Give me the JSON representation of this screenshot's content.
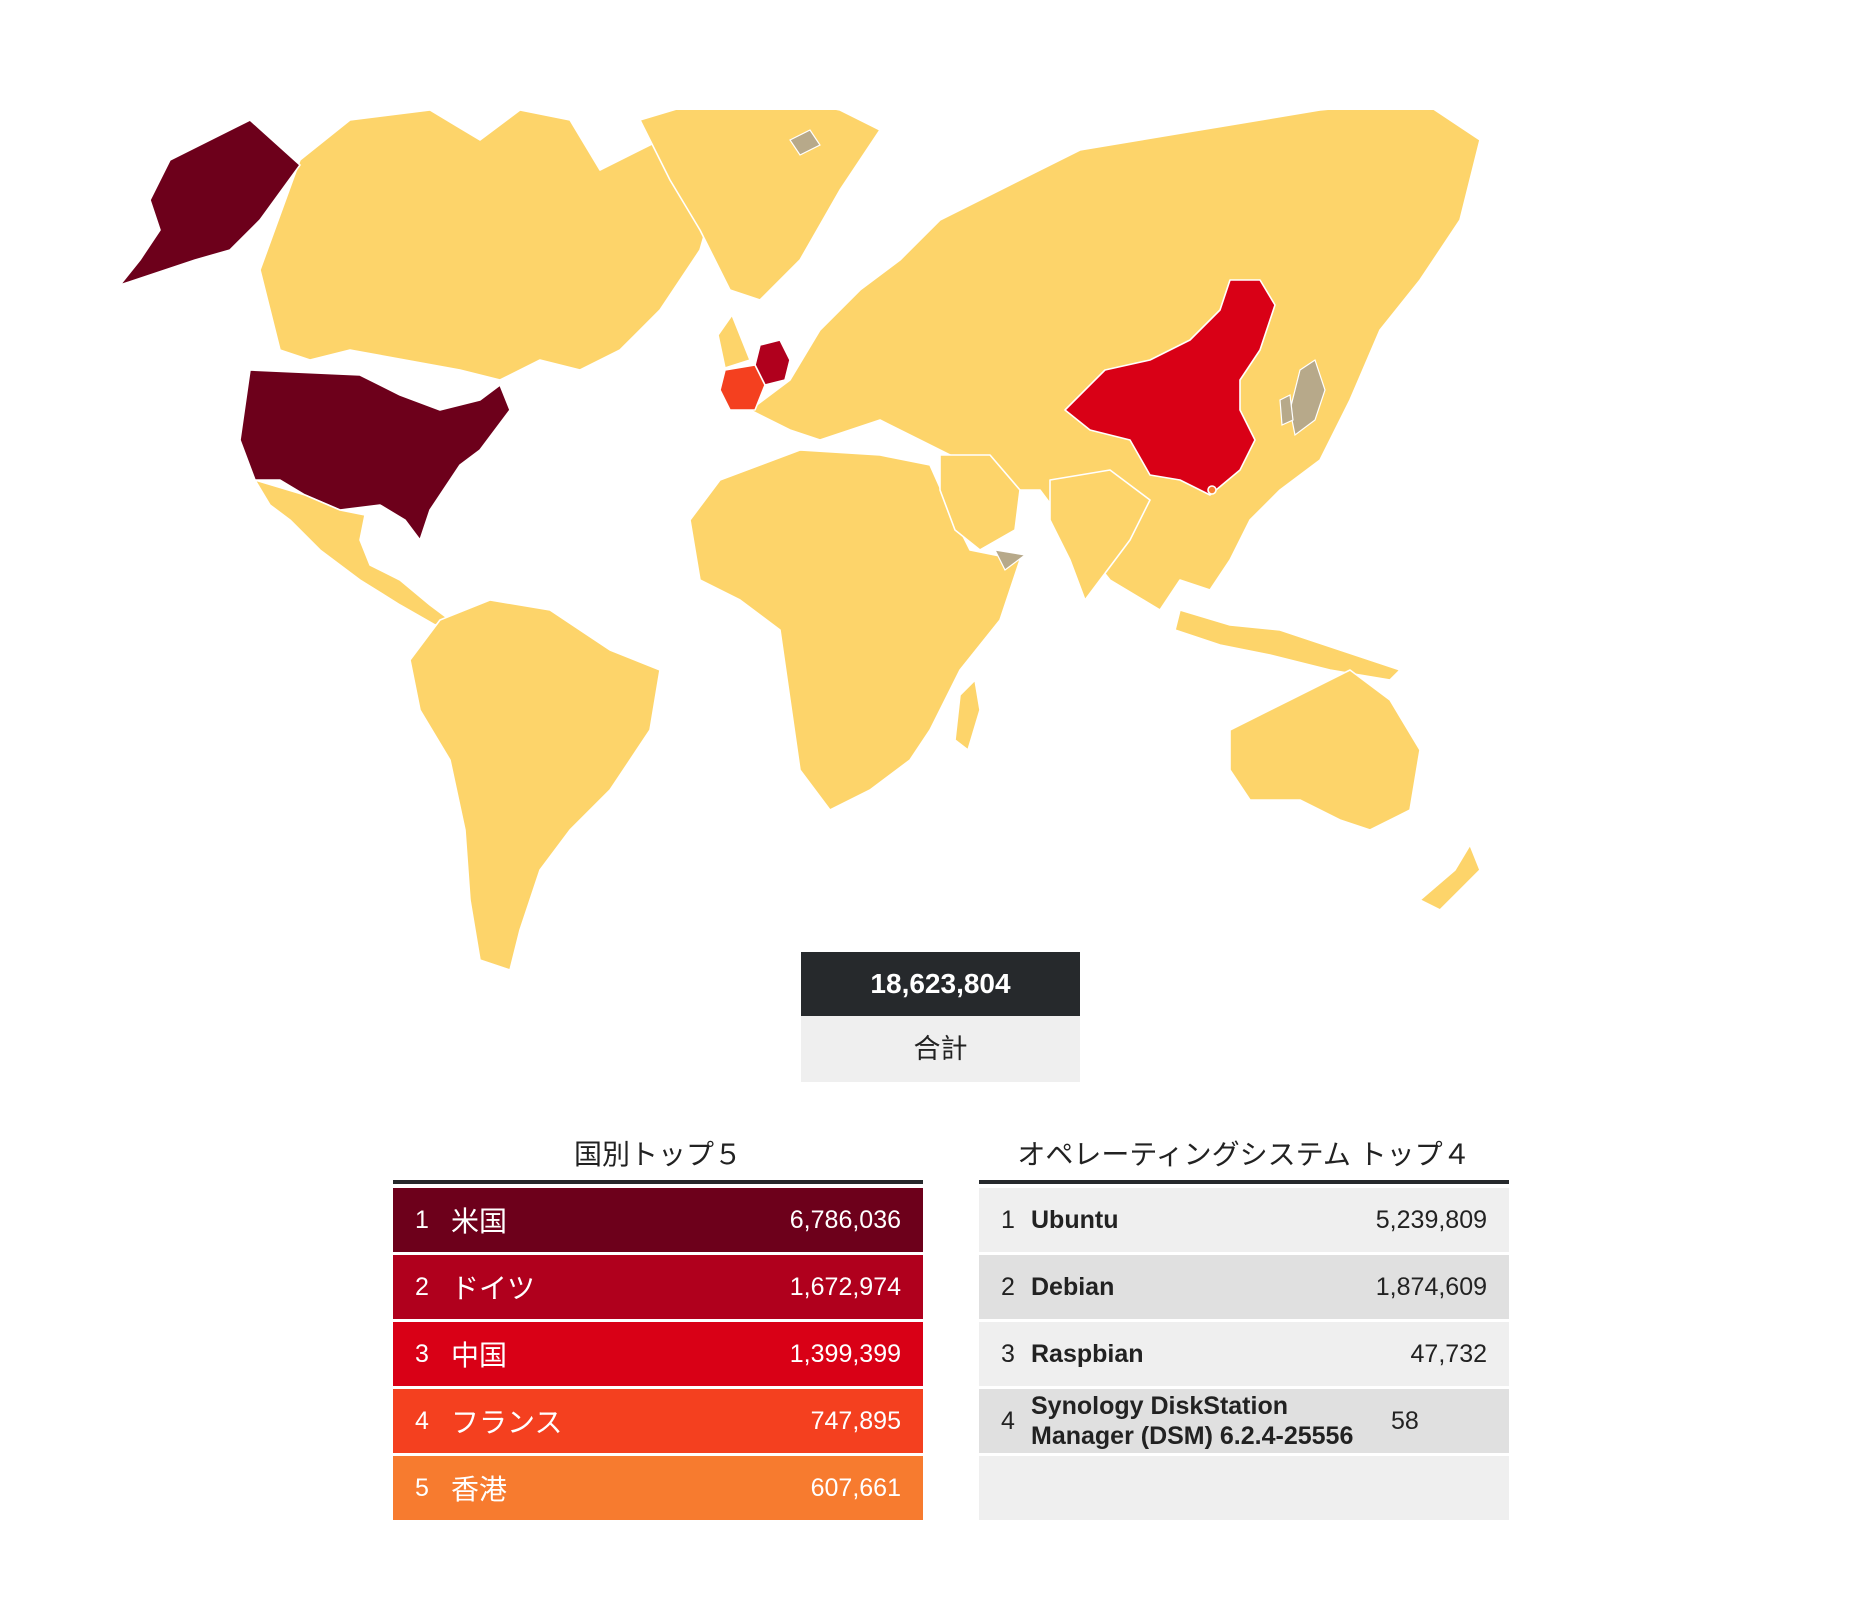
{
  "map": {
    "colors": {
      "land": "#fdd46a",
      "no_data": "#b7a98a",
      "usa": "#6d001b",
      "germany": "#b0001d",
      "china": "#d90016",
      "france": "#f4401f",
      "hong_kong": "#f77b2f"
    }
  },
  "total": {
    "value": "18,623,804",
    "label": "合計"
  },
  "countries": {
    "title": "国別トップ５",
    "rows": [
      {
        "rank": "1",
        "name": "米国",
        "value": "6,786,036",
        "color": "#6d001b"
      },
      {
        "rank": "2",
        "name": "ドイツ",
        "value": "1,672,974",
        "color": "#b0001d"
      },
      {
        "rank": "3",
        "name": "中国",
        "value": "1,399,399",
        "color": "#d90016"
      },
      {
        "rank": "4",
        "name": "フランス",
        "value": "747,895",
        "color": "#f4401f"
      },
      {
        "rank": "5",
        "name": "香港",
        "value": "607,661",
        "color": "#f77b2f"
      }
    ]
  },
  "os": {
    "title": "オペレーティングシステム トップ４",
    "rows": [
      {
        "rank": "1",
        "name": "Ubuntu",
        "value": "5,239,809"
      },
      {
        "rank": "2",
        "name": "Debian",
        "value": "1,874,609"
      },
      {
        "rank": "3",
        "name": "Raspbian",
        "value": "47,732"
      },
      {
        "rank": "4",
        "name": "Synology DiskStation Manager (DSM) 6.2.4-25556",
        "value": "58"
      }
    ]
  }
}
